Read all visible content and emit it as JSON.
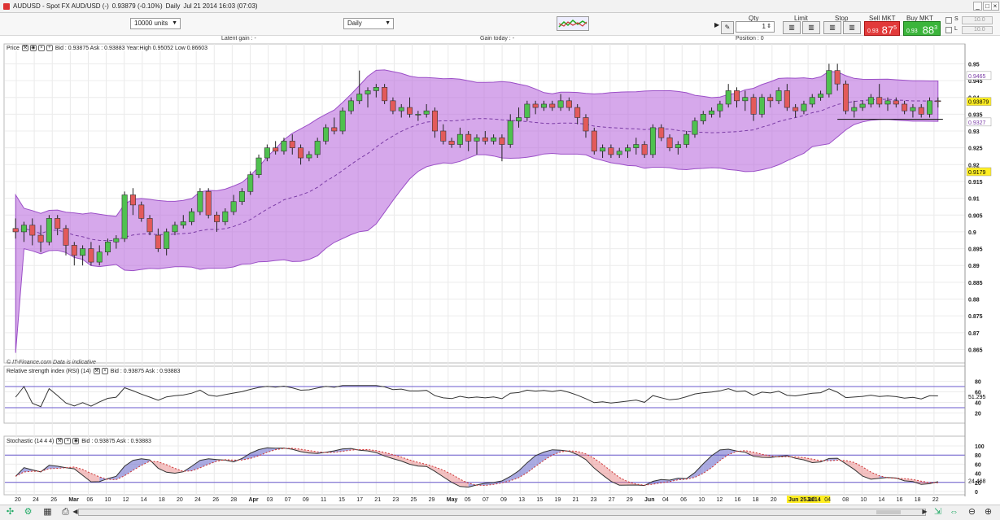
{
  "window": {
    "title": "AUDUSD - Spot FX AUD/USD (-)",
    "quote": "0.93879 (-0.10%)",
    "period_label": "Daily",
    "date": "Jul 21 2014 16:03 (07:03)"
  },
  "toolbar": {
    "units_value": "10000 units",
    "interval_value": "Daily",
    "qty_label": "Qty",
    "qty_value": "1",
    "limit_label": "Limit",
    "stop_label": "Stop",
    "sell_label": "Sell MKT",
    "sell_prefix": "0.93",
    "sell_price": "87",
    "sell_pip": "5",
    "buy_label": "Buy MKT",
    "buy_prefix": "0.93",
    "buy_price": "88",
    "buy_pip": "3",
    "s_label": "S",
    "l_label": "L",
    "sl_field": "10.0"
  },
  "info": {
    "latent_gain": "Latent gain : -",
    "gain_today": "Gain today : -",
    "position": "Position : 0"
  },
  "price_panel": {
    "label": "Price",
    "stats": "Bid : 0.93875 Ask : 0.93883 Year:High 0.95052 Low 0.86603",
    "watermark": "© IT-Finance.com  Data is indicative",
    "upper_band_tag": "0.9465",
    "last_price_tag": "0.93879",
    "lower_band_tag": "0.9327",
    "mid_band_tag": "0.9179"
  },
  "rsi_panel": {
    "label": "Relative strength index (RSI) (14)",
    "stats": "Bid : 0.93875 Ask : 0.93883",
    "value_tag": "51.295"
  },
  "stoch_panel": {
    "label": "Stochastic (14 4 4)",
    "stats": "Bid : 0.93875 Ask : 0.93883",
    "value_tag": "24.468"
  },
  "chart_data": {
    "type": "candlestick",
    "y_ticks": [
      "0.95",
      "0.945",
      "0.94",
      "0.935",
      "0.93",
      "0.925",
      "0.92",
      "0.915",
      "0.91",
      "0.905",
      "0.9",
      "0.895",
      "0.89",
      "0.885",
      "0.88",
      "0.875",
      "0.87",
      "0.865"
    ],
    "y_range": [
      0.861,
      0.953
    ],
    "rsi_ticks": [
      "80",
      "60",
      "40",
      "20"
    ],
    "rsi_range": [
      10,
      90
    ],
    "rsi_levels": [
      70,
      30
    ],
    "stoch_ticks": [
      "100",
      "80",
      "60",
      "40",
      "20",
      "0"
    ],
    "stoch_range": [
      0,
      100
    ],
    "stoch_levels": [
      80,
      20
    ],
    "x_labels": [
      "20",
      "24",
      "26",
      "Mar",
      "06",
      "10",
      "12",
      "14",
      "18",
      "20",
      "24",
      "26",
      "28",
      "Apr",
      "03",
      "07",
      "09",
      "11",
      "15",
      "17",
      "21",
      "23",
      "25",
      "29",
      "May",
      "05",
      "07",
      "09",
      "13",
      "15",
      "19",
      "21",
      "23",
      "27",
      "29",
      "Jun",
      "04",
      "06",
      "10",
      "12",
      "16",
      "18",
      "20",
      "Jun 25 2014",
      "Jul",
      "04",
      "08",
      "10",
      "14",
      "16",
      "18",
      "22"
    ],
    "x_label_highlight": "Jun 25 2014",
    "candles": [
      [
        0.901,
        0.904,
        0.898,
        0.9
      ],
      [
        0.9,
        0.903,
        0.897,
        0.902
      ],
      [
        0.902,
        0.904,
        0.896,
        0.899
      ],
      [
        0.899,
        0.902,
        0.894,
        0.897
      ],
      [
        0.897,
        0.905,
        0.896,
        0.904
      ],
      [
        0.904,
        0.905,
        0.899,
        0.901
      ],
      [
        0.901,
        0.902,
        0.893,
        0.896
      ],
      [
        0.896,
        0.897,
        0.89,
        0.893
      ],
      [
        0.893,
        0.896,
        0.89,
        0.895
      ],
      [
        0.895,
        0.897,
        0.89,
        0.891
      ],
      [
        0.891,
        0.896,
        0.89,
        0.894
      ],
      [
        0.894,
        0.898,
        0.893,
        0.897
      ],
      [
        0.897,
        0.899,
        0.895,
        0.898
      ],
      [
        0.898,
        0.912,
        0.897,
        0.911
      ],
      [
        0.911,
        0.913,
        0.905,
        0.908
      ],
      [
        0.908,
        0.909,
        0.903,
        0.904
      ],
      [
        0.904,
        0.905,
        0.899,
        0.9
      ],
      [
        0.899,
        0.901,
        0.894,
        0.895
      ],
      [
        0.895,
        0.901,
        0.893,
        0.9
      ],
      [
        0.9,
        0.903,
        0.899,
        0.902
      ],
      [
        0.902,
        0.905,
        0.901,
        0.903
      ],
      [
        0.903,
        0.907,
        0.902,
        0.906
      ],
      [
        0.906,
        0.913,
        0.905,
        0.912
      ],
      [
        0.912,
        0.913,
        0.904,
        0.905
      ],
      [
        0.905,
        0.906,
        0.9,
        0.903
      ],
      [
        0.903,
        0.907,
        0.902,
        0.906
      ],
      [
        0.906,
        0.911,
        0.905,
        0.909
      ],
      [
        0.909,
        0.913,
        0.908,
        0.912
      ],
      [
        0.912,
        0.918,
        0.911,
        0.917
      ],
      [
        0.917,
        0.923,
        0.916,
        0.922
      ],
      [
        0.922,
        0.926,
        0.921,
        0.925
      ],
      [
        0.925,
        0.927,
        0.923,
        0.924
      ],
      [
        0.924,
        0.928,
        0.923,
        0.927
      ],
      [
        0.927,
        0.929,
        0.923,
        0.925
      ],
      [
        0.925,
        0.926,
        0.92,
        0.922
      ],
      [
        0.922,
        0.924,
        0.921,
        0.923
      ],
      [
        0.923,
        0.928,
        0.922,
        0.927
      ],
      [
        0.927,
        0.932,
        0.926,
        0.931
      ],
      [
        0.931,
        0.934,
        0.929,
        0.93
      ],
      [
        0.93,
        0.937,
        0.929,
        0.936
      ],
      [
        0.936,
        0.94,
        0.935,
        0.939
      ],
      [
        0.939,
        0.948,
        0.938,
        0.941
      ],
      [
        0.941,
        0.943,
        0.937,
        0.942
      ],
      [
        0.942,
        0.944,
        0.94,
        0.943
      ],
      [
        0.943,
        0.944,
        0.938,
        0.939
      ],
      [
        0.939,
        0.94,
        0.935,
        0.936
      ],
      [
        0.936,
        0.938,
        0.934,
        0.937
      ],
      [
        0.937,
        0.94,
        0.934,
        0.935
      ],
      [
        0.935,
        0.936,
        0.933,
        0.935
      ],
      [
        0.935,
        0.938,
        0.934,
        0.936
      ],
      [
        0.936,
        0.937,
        0.928,
        0.93
      ],
      [
        0.93,
        0.932,
        0.926,
        0.927
      ],
      [
        0.927,
        0.928,
        0.925,
        0.926
      ],
      [
        0.926,
        0.931,
        0.925,
        0.929
      ],
      [
        0.929,
        0.93,
        0.924,
        0.927
      ],
      [
        0.927,
        0.929,
        0.923,
        0.928
      ],
      [
        0.928,
        0.93,
        0.926,
        0.927
      ],
      [
        0.927,
        0.929,
        0.926,
        0.928
      ],
      [
        0.928,
        0.929,
        0.921,
        0.926
      ],
      [
        0.926,
        0.935,
        0.925,
        0.933
      ],
      [
        0.933,
        0.937,
        0.931,
        0.934
      ],
      [
        0.934,
        0.939,
        0.933,
        0.938
      ],
      [
        0.938,
        0.939,
        0.935,
        0.937
      ],
      [
        0.937,
        0.939,
        0.936,
        0.938
      ],
      [
        0.938,
        0.939,
        0.936,
        0.937
      ],
      [
        0.937,
        0.941,
        0.936,
        0.939
      ],
      [
        0.939,
        0.94,
        0.936,
        0.937
      ],
      [
        0.937,
        0.938,
        0.932,
        0.934
      ],
      [
        0.934,
        0.935,
        0.928,
        0.93
      ],
      [
        0.93,
        0.931,
        0.923,
        0.924
      ],
      [
        0.924,
        0.926,
        0.922,
        0.925
      ],
      [
        0.925,
        0.926,
        0.922,
        0.923
      ],
      [
        0.923,
        0.925,
        0.922,
        0.924
      ],
      [
        0.924,
        0.926,
        0.922,
        0.925
      ],
      [
        0.925,
        0.928,
        0.923,
        0.926
      ],
      [
        0.926,
        0.927,
        0.922,
        0.923
      ],
      [
        0.923,
        0.932,
        0.922,
        0.931
      ],
      [
        0.931,
        0.932,
        0.927,
        0.928
      ],
      [
        0.928,
        0.929,
        0.924,
        0.925
      ],
      [
        0.925,
        0.927,
        0.923,
        0.926
      ],
      [
        0.926,
        0.93,
        0.925,
        0.929
      ],
      [
        0.929,
        0.934,
        0.928,
        0.933
      ],
      [
        0.933,
        0.936,
        0.932,
        0.935
      ],
      [
        0.935,
        0.937,
        0.934,
        0.936
      ],
      [
        0.936,
        0.939,
        0.934,
        0.938
      ],
      [
        0.938,
        0.944,
        0.937,
        0.942
      ],
      [
        0.942,
        0.943,
        0.937,
        0.939
      ],
      [
        0.939,
        0.942,
        0.936,
        0.94
      ],
      [
        0.94,
        0.941,
        0.933,
        0.935
      ],
      [
        0.935,
        0.941,
        0.934,
        0.94
      ],
      [
        0.94,
        0.941,
        0.937,
        0.939
      ],
      [
        0.939,
        0.943,
        0.938,
        0.942
      ],
      [
        0.942,
        0.944,
        0.936,
        0.937
      ],
      [
        0.937,
        0.938,
        0.934,
        0.936
      ],
      [
        0.936,
        0.939,
        0.935,
        0.938
      ],
      [
        0.938,
        0.941,
        0.937,
        0.94
      ],
      [
        0.94,
        0.942,
        0.939,
        0.941
      ],
      [
        0.941,
        0.95,
        0.94,
        0.948
      ],
      [
        0.948,
        0.95,
        0.942,
        0.944
      ],
      [
        0.944,
        0.945,
        0.935,
        0.936
      ],
      [
        0.936,
        0.939,
        0.934,
        0.937
      ],
      [
        0.937,
        0.939,
        0.936,
        0.938
      ],
      [
        0.938,
        0.941,
        0.937,
        0.94
      ],
      [
        0.94,
        0.944,
        0.937,
        0.938
      ],
      [
        0.938,
        0.94,
        0.936,
        0.939
      ],
      [
        0.939,
        0.94,
        0.937,
        0.938
      ],
      [
        0.938,
        0.939,
        0.935,
        0.936
      ],
      [
        0.936,
        0.938,
        0.934,
        0.937
      ],
      [
        0.937,
        0.938,
        0.934,
        0.935
      ],
      [
        0.935,
        0.94,
        0.934,
        0.939
      ],
      [
        0.939,
        0.94,
        0.937,
        0.9388
      ]
    ],
    "bands": {
      "upper_start": 0.911,
      "upper_end": 0.9465,
      "lower_start": 0.864,
      "lower_end": 0.9327
    }
  }
}
